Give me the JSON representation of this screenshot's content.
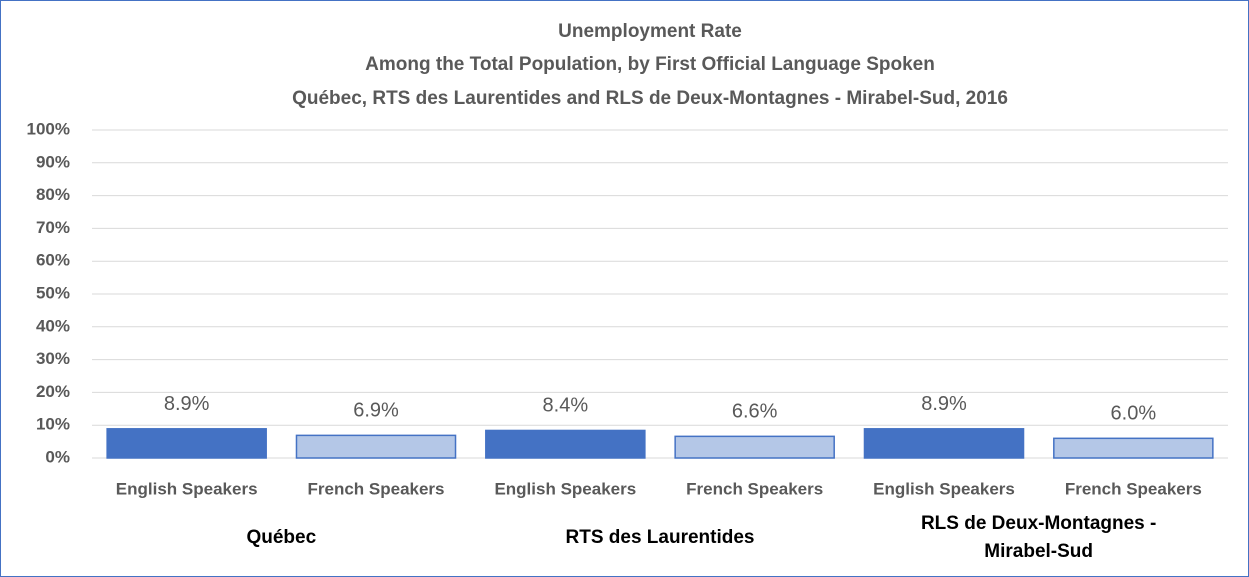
{
  "chart_data": {
    "type": "bar",
    "title": [
      "Unemployment Rate",
      "Among the Total Population, by First Official Language Spoken",
      "Québec, RTS des Laurentides and RLS de Deux-Montagnes - Mirabel-Sud, 2016"
    ],
    "categories": [
      "English Speakers",
      "French Speakers",
      "English Speakers",
      "French Speakers",
      "English Speakers",
      "French Speakers"
    ],
    "groups": [
      "Québec",
      "RTS des Laurentides",
      "RLS de Deux-Montagnes - Mirabel-Sud"
    ],
    "values": [
      8.9,
      6.9,
      8.4,
      6.6,
      8.9,
      6.0
    ],
    "value_labels": [
      "8.9%",
      "6.9%",
      "8.4%",
      "6.6%",
      "8.9%",
      "6.0%"
    ],
    "colors": [
      "#4472c4",
      "#b4c7e7",
      "#4472c4",
      "#b4c7e7",
      "#4472c4",
      "#b4c7e7"
    ],
    "ylim": [
      0,
      100
    ],
    "yticks": [
      {
        "value": 0,
        "label": "0%"
      },
      {
        "value": 10,
        "label": "10%"
      },
      {
        "value": 20,
        "label": "20%"
      },
      {
        "value": 30,
        "label": "30%"
      },
      {
        "value": 40,
        "label": "40%"
      },
      {
        "value": 50,
        "label": "50%"
      },
      {
        "value": 60,
        "label": "60%"
      },
      {
        "value": 70,
        "label": "70%"
      },
      {
        "value": 80,
        "label": "80%"
      },
      {
        "value": 90,
        "label": "90%"
      },
      {
        "value": 100,
        "label": "100%"
      }
    ],
    "grid": true
  }
}
